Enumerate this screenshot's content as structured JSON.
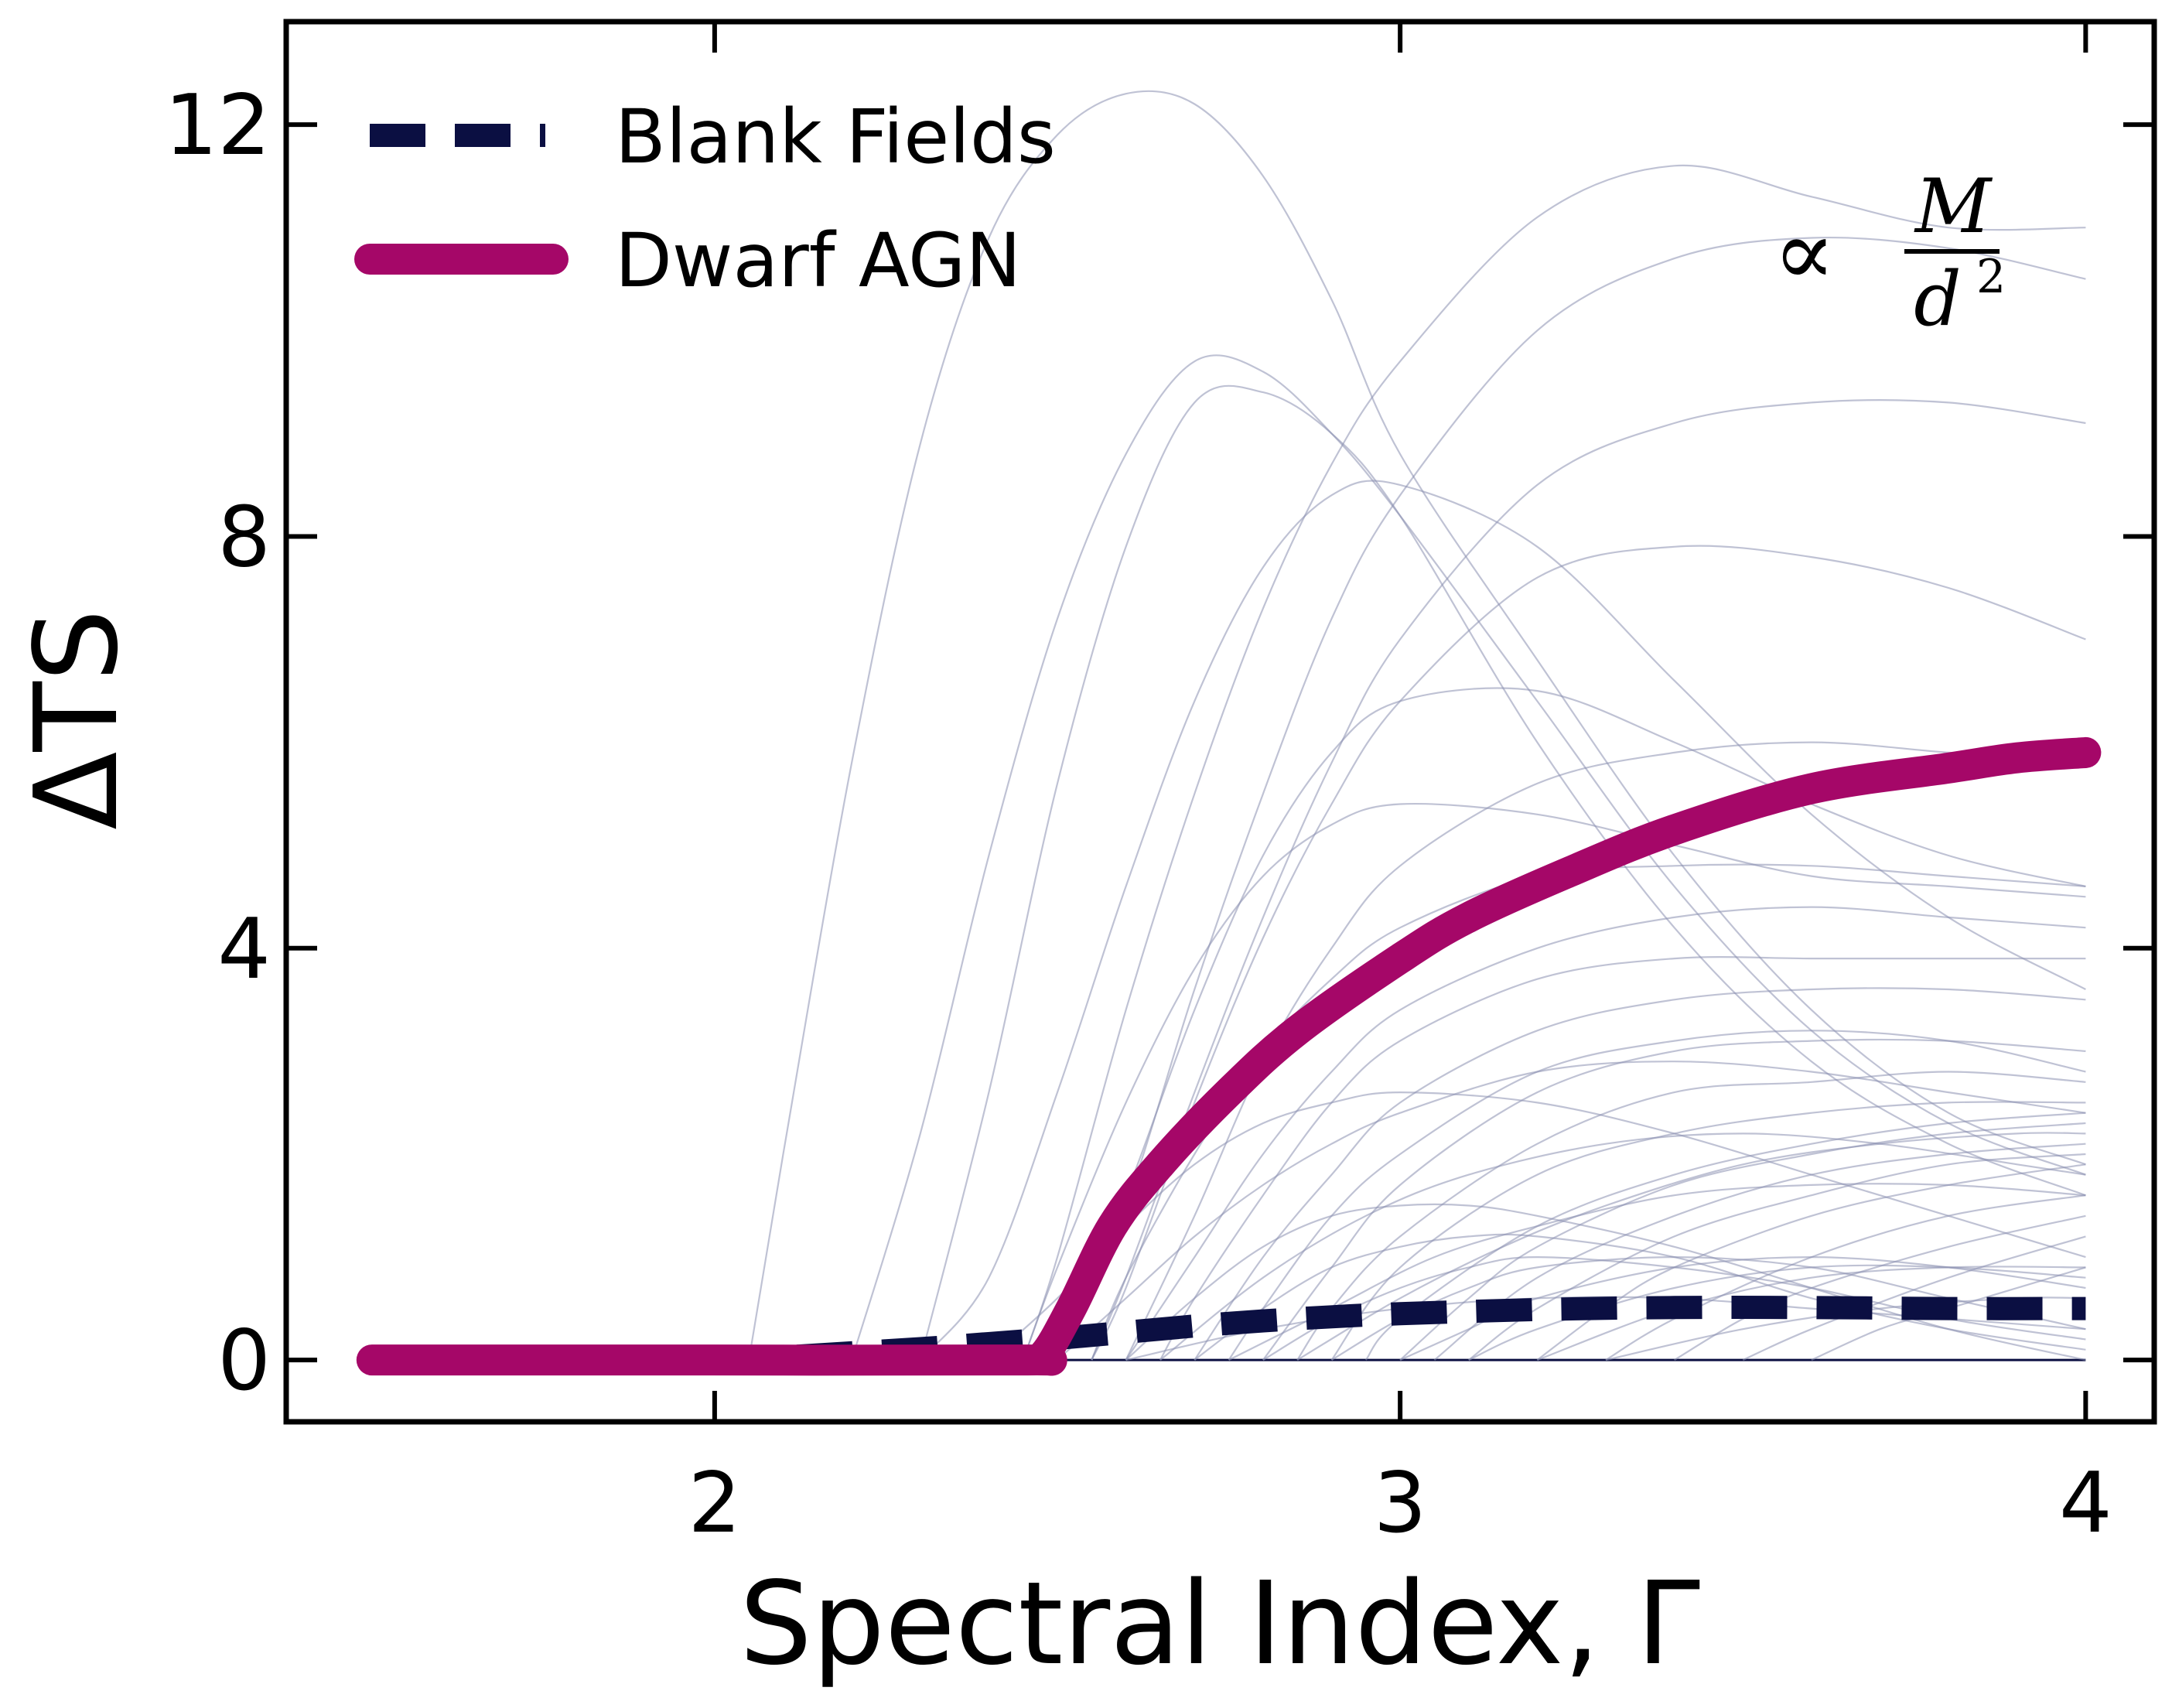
{
  "chart_data": {
    "type": "line",
    "xlabel": "Spectral Index, Γ",
    "ylabel": "ΔTS",
    "xlim": [
      1.375,
      4.1
    ],
    "ylim": [
      -0.6,
      13.0
    ],
    "xticks": [
      2,
      3,
      4
    ],
    "yticks": [
      0,
      4,
      8,
      12
    ],
    "legend": {
      "position": "top-left",
      "entries": [
        {
          "label": "Blank Fields",
          "style": "dashed",
          "color": "#0b0f42"
        },
        {
          "label": "Dwarf AGN",
          "style": "solid",
          "color": "#a50768"
        }
      ]
    },
    "annotation": {
      "symbol": "∝",
      "numerator": "M",
      "denominator": "d",
      "exponent": "2"
    },
    "series": [
      {
        "name": "Blank Fields",
        "color": "#0b0f42",
        "x": [
          1.5,
          2.0,
          2.1,
          2.2,
          2.3,
          2.4,
          2.5,
          2.6,
          2.7,
          2.8,
          2.9,
          3.0,
          3.2,
          3.4,
          3.6,
          3.8,
          4.0
        ],
        "y": [
          0.0,
          0.0,
          0.03,
          0.07,
          0.11,
          0.16,
          0.21,
          0.27,
          0.33,
          0.38,
          0.42,
          0.45,
          0.49,
          0.51,
          0.51,
          0.5,
          0.5
        ]
      },
      {
        "name": "Dwarf AGN",
        "color": "#a50768",
        "x": [
          1.5,
          2.0,
          2.45,
          2.48,
          2.52,
          2.58,
          2.65,
          2.75,
          2.85,
          3.0,
          3.1,
          3.25,
          3.4,
          3.6,
          3.8,
          3.9,
          4.0
        ],
        "y": [
          0.0,
          0.0,
          0.0,
          0.05,
          0.5,
          1.3,
          1.9,
          2.6,
          3.2,
          3.9,
          4.3,
          4.75,
          5.15,
          5.55,
          5.75,
          5.85,
          5.9
        ]
      }
    ],
    "individual_curves": {
      "color": "#8b8fb0",
      "curves": [
        {
          "x": [
            2.05,
            2.1,
            2.2,
            2.3,
            2.4,
            2.5,
            2.6,
            2.7,
            2.8,
            2.9,
            3.0,
            3.2,
            3.4,
            3.6,
            3.8,
            4.0
          ],
          "y": [
            0.0,
            2.0,
            5.8,
            8.9,
            10.9,
            11.9,
            12.3,
            12.2,
            11.5,
            10.3,
            8.8,
            6.8,
            4.9,
            3.4,
            2.4,
            1.9
          ]
        },
        {
          "x": [
            2.2,
            2.3,
            2.4,
            2.5,
            2.6,
            2.7,
            2.8,
            2.9,
            3.0,
            3.2,
            3.4,
            3.6,
            3.8,
            4.0
          ],
          "y": [
            0.0,
            2.2,
            4.9,
            7.2,
            8.8,
            9.7,
            9.6,
            9.0,
            8.2,
            6.4,
            4.6,
            3.2,
            2.3,
            1.8
          ]
        },
        {
          "x": [
            2.3,
            2.4,
            2.5,
            2.6,
            2.7,
            2.8,
            2.9,
            3.0,
            3.2,
            3.4,
            3.6,
            3.8,
            4.0
          ],
          "y": [
            0.0,
            2.6,
            5.6,
            7.9,
            9.3,
            9.4,
            9.0,
            8.2,
            6.0,
            4.2,
            2.9,
            2.1,
            1.6
          ]
        },
        {
          "x": [
            2.3,
            2.4,
            2.5,
            2.6,
            2.7,
            2.8,
            2.9,
            3.0,
            3.2,
            3.4,
            3.6,
            3.8,
            4.0
          ],
          "y": [
            0.0,
            0.8,
            2.6,
            4.6,
            6.4,
            7.7,
            8.4,
            8.5,
            7.9,
            6.6,
            5.3,
            4.3,
            3.6
          ]
        },
        {
          "x": [
            2.45,
            2.5,
            2.6,
            2.7,
            2.8,
            2.9,
            3.0,
            3.2,
            3.4,
            3.6,
            3.8,
            4.0
          ],
          "y": [
            0.0,
            1.0,
            3.4,
            5.5,
            7.3,
            8.7,
            9.7,
            11.1,
            11.6,
            11.3,
            11.0,
            11.0
          ]
        },
        {
          "x": [
            2.5,
            2.6,
            2.7,
            2.8,
            2.9,
            3.0,
            3.2,
            3.4,
            3.6,
            3.8,
            4.0
          ],
          "y": [
            0.0,
            1.5,
            3.6,
            5.5,
            7.2,
            8.4,
            10.0,
            10.7,
            10.9,
            10.8,
            10.5
          ]
        },
        {
          "x": [
            2.55,
            2.6,
            2.7,
            2.8,
            2.9,
            3.0,
            3.2,
            3.4,
            3.6,
            3.8,
            4.0
          ],
          "y": [
            0.0,
            0.8,
            2.6,
            4.3,
            5.8,
            7.0,
            8.5,
            9.1,
            9.3,
            9.3,
            9.1
          ]
        },
        {
          "x": [
            2.5,
            2.6,
            2.7,
            2.8,
            2.9,
            3.0,
            3.2,
            3.4,
            3.6,
            3.8,
            4.0
          ],
          "y": [
            0.0,
            1.6,
            3.4,
            4.9,
            5.9,
            6.4,
            6.5,
            6.0,
            5.4,
            4.9,
            4.6
          ]
        },
        {
          "x": [
            2.55,
            2.6,
            2.7,
            2.8,
            2.9,
            3.0,
            3.2,
            3.4,
            3.6,
            3.8,
            4.0
          ],
          "y": [
            0.0,
            0.7,
            2.5,
            4.1,
            5.4,
            6.4,
            7.6,
            7.9,
            7.8,
            7.5,
            7.0
          ]
        },
        {
          "x": [
            2.45,
            2.5,
            2.6,
            2.7,
            2.8,
            2.9,
            3.0,
            3.2,
            3.4,
            3.6,
            3.8,
            4.0
          ],
          "y": [
            0.0,
            0.9,
            2.5,
            3.8,
            4.7,
            5.2,
            5.4,
            5.3,
            5.0,
            4.7,
            4.6,
            4.5
          ]
        },
        {
          "x": [
            2.6,
            2.7,
            2.8,
            2.9,
            3.0,
            3.2,
            3.4,
            3.6,
            3.8,
            4.0
          ],
          "y": [
            0.0,
            1.4,
            2.9,
            4.0,
            4.8,
            5.6,
            5.9,
            6.0,
            5.9,
            5.8
          ]
        },
        {
          "x": [
            2.55,
            2.6,
            2.7,
            2.8,
            2.9,
            3.0,
            3.2,
            3.4,
            3.6,
            3.8,
            4.0
          ],
          "y": [
            0.0,
            0.8,
            2.0,
            3.0,
            3.7,
            4.2,
            4.7,
            4.8,
            4.8,
            4.7,
            4.6
          ]
        },
        {
          "x": [
            2.6,
            2.7,
            2.8,
            2.9,
            3.0,
            3.2,
            3.4,
            3.6,
            3.8,
            4.0
          ],
          "y": [
            0.0,
            1.0,
            2.0,
            2.8,
            3.4,
            4.0,
            4.3,
            4.4,
            4.3,
            4.2
          ]
        },
        {
          "x": [
            2.65,
            2.7,
            2.8,
            2.9,
            3.0,
            3.2,
            3.4,
            3.6,
            3.8,
            4.0
          ],
          "y": [
            0.0,
            0.6,
            1.6,
            2.5,
            3.1,
            3.7,
            3.9,
            3.9,
            3.9,
            3.9
          ]
        },
        {
          "x": [
            2.7,
            2.8,
            2.9,
            3.0,
            3.2,
            3.4,
            3.6,
            3.8,
            4.0
          ],
          "y": [
            0.0,
            1.0,
            1.8,
            2.5,
            3.2,
            3.5,
            3.6,
            3.6,
            3.5
          ]
        },
        {
          "x": [
            2.75,
            2.8,
            2.9,
            3.0,
            3.2,
            3.4,
            3.6,
            3.8,
            4.0
          ],
          "y": [
            0.0,
            0.5,
            1.4,
            2.0,
            2.8,
            3.1,
            3.2,
            3.1,
            2.8
          ]
        },
        {
          "x": [
            2.8,
            2.9,
            3.0,
            3.2,
            3.4,
            3.6,
            3.8,
            4.0
          ],
          "y": [
            0.0,
            0.9,
            1.7,
            2.6,
            3.0,
            3.1,
            3.1,
            3.0
          ]
        },
        {
          "x": [
            2.85,
            2.9,
            3.0,
            3.2,
            3.4,
            3.6,
            3.8,
            4.0
          ],
          "y": [
            0.0,
            0.5,
            1.2,
            2.1,
            2.6,
            2.7,
            2.8,
            2.7
          ]
        },
        {
          "x": [
            2.9,
            3.0,
            3.2,
            3.4,
            3.6,
            3.8,
            4.0
          ],
          "y": [
            0.0,
            0.9,
            1.8,
            2.2,
            2.4,
            2.5,
            2.5
          ]
        },
        {
          "x": [
            2.95,
            3.0,
            3.2,
            3.4,
            3.6,
            3.8,
            4.0
          ],
          "y": [
            0.0,
            0.4,
            1.3,
            1.8,
            2.1,
            2.3,
            2.4
          ]
        },
        {
          "x": [
            3.0,
            3.1,
            3.2,
            3.4,
            3.6,
            3.8,
            4.0
          ],
          "y": [
            0.0,
            0.6,
            1.1,
            1.7,
            2.0,
            2.2,
            2.3
          ]
        },
        {
          "x": [
            3.05,
            3.2,
            3.4,
            3.6,
            3.8,
            4.0
          ],
          "y": [
            0.0,
            0.8,
            1.4,
            1.8,
            2.0,
            2.1
          ]
        },
        {
          "x": [
            3.1,
            3.2,
            3.4,
            3.6,
            3.8,
            4.0
          ],
          "y": [
            0.0,
            0.5,
            1.2,
            1.6,
            1.9,
            2.0
          ]
        },
        {
          "x": [
            3.2,
            3.3,
            3.4,
            3.6,
            3.8,
            4.0
          ],
          "y": [
            0.0,
            0.5,
            0.9,
            1.4,
            1.7,
            1.9
          ]
        },
        {
          "x": [
            3.3,
            3.4,
            3.6,
            3.8,
            4.0
          ],
          "y": [
            0.0,
            0.4,
            1.0,
            1.4,
            1.6
          ]
        },
        {
          "x": [
            3.4,
            3.5,
            3.6,
            3.8,
            4.0
          ],
          "y": [
            0.0,
            0.4,
            0.7,
            1.1,
            1.4
          ]
        },
        {
          "x": [
            3.5,
            3.6,
            3.8,
            4.0
          ],
          "y": [
            0.0,
            0.3,
            0.8,
            1.2
          ]
        },
        {
          "x": [
            3.6,
            3.7,
            3.8,
            4.0
          ],
          "y": [
            0.0,
            0.3,
            0.5,
            0.9
          ]
        },
        {
          "x": [
            2.6,
            2.7,
            2.8,
            2.9,
            3.0,
            3.1,
            3.2,
            3.4,
            3.6,
            3.8,
            4.0
          ],
          "y": [
            0.0,
            0.6,
            1.1,
            1.4,
            1.5,
            1.5,
            1.4,
            1.1,
            0.7,
            0.3,
            0.0
          ]
        },
        {
          "x": [
            2.7,
            2.8,
            2.9,
            3.0,
            3.1,
            3.2,
            3.4,
            3.6,
            3.8,
            4.0
          ],
          "y": [
            0.0,
            0.5,
            0.9,
            1.1,
            1.2,
            1.2,
            1.0,
            0.6,
            0.3,
            0.1
          ]
        },
        {
          "x": [
            2.8,
            2.9,
            3.0,
            3.1,
            3.2,
            3.4,
            3.6,
            3.8,
            4.0
          ],
          "y": [
            0.0,
            0.4,
            0.7,
            0.9,
            1.0,
            0.9,
            0.7,
            0.4,
            0.2
          ]
        },
        {
          "x": [
            2.9,
            3.0,
            3.1,
            3.2,
            3.4,
            3.6,
            3.8,
            4.0
          ],
          "y": [
            0.0,
            0.4,
            0.7,
            0.9,
            1.0,
            0.9,
            0.6,
            0.3
          ]
        },
        {
          "x": [
            3.0,
            3.1,
            3.2,
            3.4,
            3.6,
            3.8,
            4.0
          ],
          "y": [
            0.0,
            0.3,
            0.6,
            0.9,
            1.0,
            0.9,
            0.7
          ]
        },
        {
          "x": [
            3.1,
            3.2,
            3.4,
            3.6,
            3.8,
            4.0
          ],
          "y": [
            0.0,
            0.3,
            0.7,
            0.9,
            0.9,
            0.8
          ]
        },
        {
          "x": [
            3.2,
            3.4,
            3.6,
            3.8,
            4.0
          ],
          "y": [
            0.0,
            0.5,
            0.8,
            0.9,
            0.9
          ]
        },
        {
          "x": [
            2.6,
            2.8,
            3.0,
            3.2,
            3.4,
            3.6,
            3.8,
            4.0
          ],
          "y": [
            0.0,
            0.3,
            0.5,
            0.6,
            0.6,
            0.5,
            0.4,
            0.3
          ]
        },
        {
          "x": [
            3.3,
            3.5,
            3.7,
            3.9,
            4.0
          ],
          "y": [
            0.0,
            0.3,
            0.5,
            0.6,
            0.6
          ]
        },
        {
          "x": [
            2.75,
            2.9,
            3.05,
            3.2,
            3.4,
            3.6,
            3.8,
            4.0
          ],
          "y": [
            0.0,
            0.5,
            1.0,
            1.3,
            1.6,
            1.7,
            1.7,
            1.6
          ]
        },
        {
          "x": [
            2.85,
            3.0,
            3.15,
            3.3,
            3.5,
            3.7,
            3.9,
            4.0
          ],
          "y": [
            0.0,
            0.6,
            1.1,
            1.5,
            1.9,
            2.1,
            2.2,
            2.2
          ]
        },
        {
          "x": [
            2.65,
            2.8,
            2.95,
            3.1,
            3.3,
            3.5,
            3.7,
            3.9,
            4.0
          ],
          "y": [
            0.0,
            0.8,
            1.4,
            1.8,
            2.1,
            2.2,
            2.1,
            1.9,
            1.8
          ]
        },
        {
          "x": [
            2.4,
            2.5,
            2.6,
            2.7,
            2.8,
            2.9,
            3.0,
            3.2,
            3.4,
            3.6,
            3.8,
            4.0
          ],
          "y": [
            0.0,
            0.6,
            1.3,
            1.9,
            2.3,
            2.5,
            2.6,
            2.5,
            2.2,
            1.8,
            1.4,
            1.0
          ]
        },
        {
          "x": [
            2.5,
            2.6,
            2.7,
            2.8,
            2.9,
            3.0,
            3.2,
            3.4,
            3.6,
            3.8,
            4.0
          ],
          "y": [
            0.0,
            0.6,
            1.2,
            1.7,
            2.1,
            2.4,
            2.8,
            2.9,
            2.8,
            2.6,
            2.4
          ]
        }
      ]
    }
  }
}
